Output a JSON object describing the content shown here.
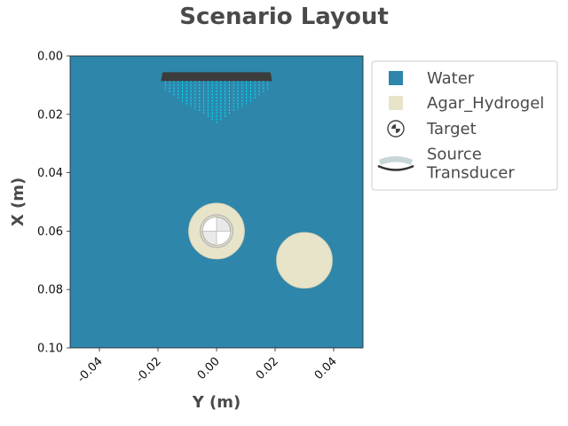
{
  "chart_data": {
    "type": "scatter",
    "title": "Scenario Layout",
    "xlabel": "Y (m)",
    "ylabel": "X (m)",
    "xlim": [
      -0.05,
      0.05
    ],
    "ylim": [
      0.1,
      0.0
    ],
    "x_ticks": [
      -0.04,
      -0.02,
      0.0,
      0.02,
      0.04
    ],
    "x_tick_labels": [
      "-0.04",
      "-0.02",
      "0.00",
      "0.02",
      "0.04"
    ],
    "y_ticks": [
      0.0,
      0.02,
      0.04,
      0.06,
      0.08,
      0.1
    ],
    "y_tick_labels": [
      "0.00",
      "0.02",
      "0.04",
      "0.06",
      "0.08",
      "0.10"
    ],
    "grid": false,
    "legend_position": "outside-right-top",
    "background_color": "#2e86ab",
    "objects": [
      {
        "name": "Agar_Hydrogel",
        "kind": "circle",
        "center_y": 0.0,
        "center_x": 0.06,
        "radius": 0.0095,
        "color": "#e8e4c9"
      },
      {
        "name": "Agar_Hydrogel",
        "kind": "circle",
        "center_y": 0.03,
        "center_x": 0.07,
        "radius": 0.0095,
        "color": "#e8e4c9"
      },
      {
        "name": "Target",
        "kind": "target-marker",
        "center_y": 0.0,
        "center_x": 0.06,
        "radius": 0.0048
      },
      {
        "name": "Source Transducer",
        "kind": "transducer",
        "y_min": -0.019,
        "y_max": 0.019,
        "x_face": 0.008,
        "focus_depth": 0.023,
        "color": "#3c3c3c",
        "beam_color": "#00e5ff"
      }
    ],
    "legend": [
      {
        "label": "Water",
        "symbol": "square",
        "color": "#2e86ab"
      },
      {
        "label": "Agar_Hydrogel",
        "symbol": "square",
        "color": "#e8e4c9"
      },
      {
        "label": "Target",
        "symbol": "target-icon"
      },
      {
        "label": "Source\nTransducer",
        "label_lines": [
          "Source",
          "Transducer"
        ],
        "symbol": "transducer-icon"
      }
    ]
  }
}
